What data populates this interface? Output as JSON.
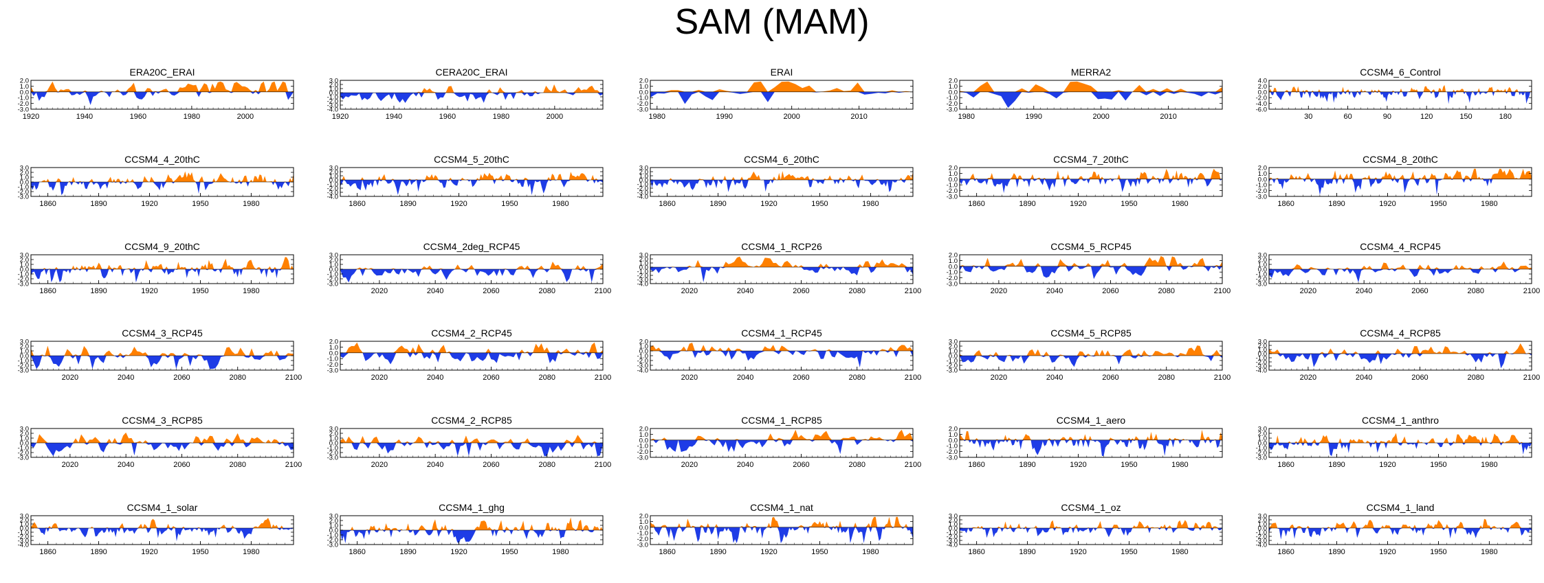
{
  "title": "SAM (MAM)",
  "colors": {
    "positive": "#ff8000",
    "negative": "#1e3ce6",
    "axis": "#000000"
  },
  "chart_data": [
    {
      "type": "area",
      "title": "ERA20C_ERAI",
      "xticks": [
        "1920",
        "1940",
        "1960",
        "1980",
        "2000"
      ],
      "yticks": [
        "2.0",
        "1.0",
        "0.0",
        "-1.0",
        "-2.0",
        "-3.0"
      ],
      "ylim": [
        -3,
        2
      ],
      "xlim": [
        1920,
        2018
      ],
      "n": 98,
      "seed": 11,
      "trend": 0.9,
      "amp": 0.9
    },
    {
      "type": "area",
      "title": "CERA20C_ERAI",
      "xticks": [
        "1920",
        "1940",
        "1960",
        "1980",
        "2000"
      ],
      "yticks": [
        "3.0",
        "2.0",
        "1.0",
        "0.0",
        "-1.0",
        "-2.0",
        "-3.0",
        "-4.0"
      ],
      "ylim": [
        -4,
        3
      ],
      "xlim": [
        1920,
        2018
      ],
      "n": 98,
      "seed": 12,
      "trend": 0.7,
      "amp": 0.9
    },
    {
      "type": "area",
      "title": "ERAI",
      "xticks": [
        "1980",
        "1990",
        "2000",
        "2010"
      ],
      "yticks": [
        "2.0",
        "1.0",
        "0.0",
        "-1.0",
        "-2.0",
        "-3.0"
      ],
      "ylim": [
        -3,
        2
      ],
      "xlim": [
        1979,
        2018
      ],
      "n": 39,
      "seed": 13,
      "trend": 0.3,
      "amp": 1.0
    },
    {
      "type": "area",
      "title": "MERRA2",
      "xticks": [
        "1980",
        "1990",
        "2000",
        "2010"
      ],
      "yticks": [
        "2.0",
        "1.0",
        "0.0",
        "-1.0",
        "-2.0",
        "-3.0"
      ],
      "ylim": [
        -3,
        2
      ],
      "xlim": [
        1979,
        2018
      ],
      "n": 39,
      "seed": 14,
      "trend": 0.3,
      "amp": 1.0
    },
    {
      "type": "area",
      "title": "CCSM4_6_Control",
      "xticks": [
        "30",
        "60",
        "90",
        "120",
        "150",
        "180"
      ],
      "yticks": [
        "4.0",
        "2.0",
        "0.0",
        "-2.0",
        "-4.0",
        "-6.0"
      ],
      "ylim": [
        -6,
        4
      ],
      "xlim": [
        0,
        200
      ],
      "n": 200,
      "seed": 15,
      "trend": 0,
      "amp": 1.2
    },
    {
      "type": "area",
      "title": "CCSM4_4_20thC",
      "xticks": [
        "1860",
        "1890",
        "1920",
        "1950",
        "1980"
      ],
      "yticks": [
        "3.0",
        "2.0",
        "1.0",
        "0.0",
        "-1.0",
        "-2.0",
        "-3.0"
      ],
      "ylim": [
        -3,
        3
      ],
      "xlim": [
        1850,
        2005
      ],
      "n": 156,
      "seed": 21,
      "trend": 0.4,
      "amp": 0.9
    },
    {
      "type": "area",
      "title": "CCSM4_5_20thC",
      "xticks": [
        "1860",
        "1890",
        "1920",
        "1950",
        "1980"
      ],
      "yticks": [
        "3.0",
        "2.0",
        "1.0",
        "0.0",
        "-1.0",
        "-2.0",
        "-3.0",
        "-4.0"
      ],
      "ylim": [
        -4,
        3
      ],
      "xlim": [
        1850,
        2005
      ],
      "n": 156,
      "seed": 22,
      "trend": 0.4,
      "amp": 1.0
    },
    {
      "type": "area",
      "title": "CCSM4_6_20thC",
      "xticks": [
        "1860",
        "1890",
        "1920",
        "1950",
        "1980"
      ],
      "yticks": [
        "3.0",
        "2.0",
        "1.0",
        "0.0",
        "-1.0",
        "-2.0",
        "-3.0",
        "-4.0"
      ],
      "ylim": [
        -4,
        3
      ],
      "xlim": [
        1850,
        2005
      ],
      "n": 156,
      "seed": 23,
      "trend": 0.4,
      "amp": 1.0
    },
    {
      "type": "area",
      "title": "CCSM4_7_20thC",
      "xticks": [
        "1860",
        "1890",
        "1920",
        "1950",
        "1980"
      ],
      "yticks": [
        "2.0",
        "1.0",
        "0.0",
        "-1.0",
        "-2.0",
        "-3.0"
      ],
      "ylim": [
        -3,
        2
      ],
      "xlim": [
        1850,
        2005
      ],
      "n": 156,
      "seed": 24,
      "trend": 0.4,
      "amp": 0.9
    },
    {
      "type": "area",
      "title": "CCSM4_8_20thC",
      "xticks": [
        "1860",
        "1890",
        "1920",
        "1950",
        "1980"
      ],
      "yticks": [
        "2.0",
        "1.0",
        "0.0",
        "-1.0",
        "-2.0",
        "-3.0"
      ],
      "ylim": [
        -3,
        2
      ],
      "xlim": [
        1850,
        2005
      ],
      "n": 156,
      "seed": 25,
      "trend": 0.4,
      "amp": 0.9
    },
    {
      "type": "area",
      "title": "CCSM4_9_20thC",
      "xticks": [
        "1860",
        "1890",
        "1920",
        "1950",
        "1980"
      ],
      "yticks": [
        "3.0",
        "2.0",
        "1.0",
        "0.0",
        "-1.0",
        "-2.0",
        "-3.0"
      ],
      "ylim": [
        -3,
        3
      ],
      "xlim": [
        1850,
        2005
      ],
      "n": 156,
      "seed": 31,
      "trend": 0.4,
      "amp": 0.9
    },
    {
      "type": "area",
      "title": "CCSM4_2deg_RCP45",
      "xticks": [
        "2020",
        "2040",
        "2060",
        "2080",
        "2100"
      ],
      "yticks": [
        "3.0",
        "2.0",
        "1.0",
        "0.0",
        "-1.0",
        "-2.0",
        "-3.0"
      ],
      "ylim": [
        -3,
        3
      ],
      "xlim": [
        2006,
        2100
      ],
      "n": 95,
      "seed": 32,
      "trend": 0.3,
      "amp": 1.0
    },
    {
      "type": "area",
      "title": "CCSM4_1_RCP26",
      "xticks": [
        "2020",
        "2040",
        "2060",
        "2080",
        "2100"
      ],
      "yticks": [
        "3.0",
        "2.0",
        "1.0",
        "0.0",
        "-1.0",
        "-2.0",
        "-3.0",
        "-4.0"
      ],
      "ylim": [
        -4,
        3
      ],
      "xlim": [
        2006,
        2100
      ],
      "n": 95,
      "seed": 33,
      "trend": 0.2,
      "amp": 1.0
    },
    {
      "type": "area",
      "title": "CCSM4_5_RCP45",
      "xticks": [
        "2020",
        "2040",
        "2060",
        "2080",
        "2100"
      ],
      "yticks": [
        "2.0",
        "1.0",
        "0.0",
        "-1.0",
        "-2.0",
        "-3.0"
      ],
      "ylim": [
        -3,
        2
      ],
      "xlim": [
        2006,
        2100
      ],
      "n": 95,
      "seed": 34,
      "trend": 0.3,
      "amp": 0.9
    },
    {
      "type": "area",
      "title": "CCSM4_4_RCP45",
      "xticks": [
        "2020",
        "2040",
        "2060",
        "2080",
        "2100"
      ],
      "yticks": [
        "3.0",
        "2.0",
        "1.0",
        "0.0",
        "-1.0",
        "-2.0",
        "-3.0"
      ],
      "ylim": [
        -3,
        3
      ],
      "xlim": [
        2006,
        2100
      ],
      "n": 95,
      "seed": 35,
      "trend": 0.3,
      "amp": 0.9
    },
    {
      "type": "area",
      "title": "CCSM4_3_RCP45",
      "xticks": [
        "2020",
        "2040",
        "2060",
        "2080",
        "2100"
      ],
      "yticks": [
        "3.0",
        "2.0",
        "1.0",
        "0.0",
        "-1.0",
        "-2.0",
        "-3.0"
      ],
      "ylim": [
        -3,
        3
      ],
      "xlim": [
        2006,
        2100
      ],
      "n": 95,
      "seed": 41,
      "trend": 0.2,
      "amp": 1.0
    },
    {
      "type": "area",
      "title": "CCSM4_2_RCP45",
      "xticks": [
        "2020",
        "2040",
        "2060",
        "2080",
        "2100"
      ],
      "yticks": [
        "2.0",
        "1.0",
        "0.0",
        "-1.0",
        "-2.0",
        "-3.0"
      ],
      "ylim": [
        -3,
        2
      ],
      "xlim": [
        2006,
        2100
      ],
      "n": 95,
      "seed": 42,
      "trend": 0.3,
      "amp": 1.0
    },
    {
      "type": "area",
      "title": "CCSM4_1_RCP45",
      "xticks": [
        "2020",
        "2040",
        "2060",
        "2080",
        "2100"
      ],
      "yticks": [
        "2.0",
        "1.0",
        "0.0",
        "-1.0",
        "-2.0",
        "-3.0",
        "-4.0"
      ],
      "ylim": [
        -4,
        2
      ],
      "xlim": [
        2006,
        2100
      ],
      "n": 95,
      "seed": 43,
      "trend": 0.3,
      "amp": 1.0
    },
    {
      "type": "area",
      "title": "CCSM4_5_RCP85",
      "xticks": [
        "2020",
        "2040",
        "2060",
        "2080",
        "2100"
      ],
      "yticks": [
        "3.0",
        "2.0",
        "1.0",
        "0.0",
        "-1.0",
        "-2.0",
        "-3.0"
      ],
      "ylim": [
        -3,
        3
      ],
      "xlim": [
        2006,
        2100
      ],
      "n": 95,
      "seed": 44,
      "trend": 0.3,
      "amp": 1.0
    },
    {
      "type": "area",
      "title": "CCSM4_4_RCP85",
      "xticks": [
        "2020",
        "2040",
        "2060",
        "2080",
        "2100"
      ],
      "yticks": [
        "3.0",
        "2.0",
        "1.0",
        "0.0",
        "-1.0",
        "-2.0",
        "-3.0",
        "-4.0"
      ],
      "ylim": [
        -4,
        3
      ],
      "xlim": [
        2006,
        2100
      ],
      "n": 95,
      "seed": 45,
      "trend": 0.3,
      "amp": 1.0
    },
    {
      "type": "area",
      "title": "CCSM4_3_RCP85",
      "xticks": [
        "2020",
        "2040",
        "2060",
        "2080",
        "2100"
      ],
      "yticks": [
        "3.0",
        "2.0",
        "1.0",
        "0.0",
        "-1.0",
        "-2.0",
        "-3.0"
      ],
      "ylim": [
        -3,
        3
      ],
      "xlim": [
        2006,
        2100
      ],
      "n": 95,
      "seed": 51,
      "trend": 0.4,
      "amp": 1.0
    },
    {
      "type": "area",
      "title": "CCSM4_2_RCP85",
      "xticks": [
        "2020",
        "2040",
        "2060",
        "2080",
        "2100"
      ],
      "yticks": [
        "3.0",
        "2.0",
        "1.0",
        "0.0",
        "-1.0",
        "-2.0",
        "-3.0"
      ],
      "ylim": [
        -3,
        3
      ],
      "xlim": [
        2006,
        2100
      ],
      "n": 95,
      "seed": 52,
      "trend": 0.4,
      "amp": 1.0
    },
    {
      "type": "area",
      "title": "CCSM4_1_RCP85",
      "xticks": [
        "2020",
        "2040",
        "2060",
        "2080",
        "2100"
      ],
      "yticks": [
        "2.0",
        "1.0",
        "0.0",
        "-1.0",
        "-2.0",
        "-3.0"
      ],
      "ylim": [
        -3,
        2
      ],
      "xlim": [
        2006,
        2100
      ],
      "n": 95,
      "seed": 53,
      "trend": 0.4,
      "amp": 0.9
    },
    {
      "type": "area",
      "title": "CCSM4_1_aero",
      "xticks": [
        "1860",
        "1890",
        "1920",
        "1950",
        "1980"
      ],
      "yticks": [
        "2.0",
        "1.0",
        "0.0",
        "-1.0",
        "-2.0",
        "-3.0"
      ],
      "ylim": [
        -3,
        2
      ],
      "xlim": [
        1850,
        2005
      ],
      "n": 156,
      "seed": 54,
      "trend": 0.3,
      "amp": 1.0
    },
    {
      "type": "area",
      "title": "CCSM4_1_anthro",
      "xticks": [
        "1860",
        "1890",
        "1920",
        "1950",
        "1980"
      ],
      "yticks": [
        "3.0",
        "2.0",
        "1.0",
        "0.0",
        "-1.0",
        "-2.0",
        "-3.0"
      ],
      "ylim": [
        -3,
        3
      ],
      "xlim": [
        1850,
        2005
      ],
      "n": 156,
      "seed": 55,
      "trend": 0.3,
      "amp": 0.9
    },
    {
      "type": "area",
      "title": "CCSM4_1_solar",
      "xticks": [
        "1860",
        "1890",
        "1920",
        "1950",
        "1980"
      ],
      "yticks": [
        "3.0",
        "2.0",
        "1.0",
        "0.0",
        "-1.0",
        "-2.0",
        "-3.0",
        "-4.0"
      ],
      "ylim": [
        -4,
        3
      ],
      "xlim": [
        1850,
        2005
      ],
      "n": 156,
      "seed": 61,
      "trend": 0.3,
      "amp": 1.0
    },
    {
      "type": "area",
      "title": "CCSM4_1_ghg",
      "xticks": [
        "1860",
        "1890",
        "1920",
        "1950",
        "1980"
      ],
      "yticks": [
        "3.0",
        "2.0",
        "1.0",
        "0.0",
        "-1.0",
        "-2.0",
        "-3.0"
      ],
      "ylim": [
        -3,
        3
      ],
      "xlim": [
        1850,
        2005
      ],
      "n": 156,
      "seed": 62,
      "trend": 0.3,
      "amp": 1.0
    },
    {
      "type": "area",
      "title": "CCSM4_1_nat",
      "xticks": [
        "1860",
        "1890",
        "1920",
        "1950",
        "1980"
      ],
      "yticks": [
        "2.0",
        "1.0",
        "0.0",
        "-1.0",
        "-2.0",
        "-3.0"
      ],
      "ylim": [
        -3,
        2
      ],
      "xlim": [
        1850,
        2005
      ],
      "n": 156,
      "seed": 63,
      "trend": 0.2,
      "amp": 1.0
    },
    {
      "type": "area",
      "title": "CCSM4_1_oz",
      "xticks": [
        "1860",
        "1890",
        "1920",
        "1950",
        "1980"
      ],
      "yticks": [
        "3.0",
        "2.0",
        "1.0",
        "0.0",
        "-1.0",
        "-2.0",
        "-3.0",
        "-4.0"
      ],
      "ylim": [
        -4,
        3
      ],
      "xlim": [
        1850,
        2005
      ],
      "n": 156,
      "seed": 64,
      "trend": 0.3,
      "amp": 0.9
    },
    {
      "type": "area",
      "title": "CCSM4_1_land",
      "xticks": [
        "1860",
        "1890",
        "1920",
        "1950",
        "1980"
      ],
      "yticks": [
        "3.0",
        "2.0",
        "1.0",
        "0.0",
        "-1.0",
        "-2.0",
        "-3.0",
        "-4.0"
      ],
      "ylim": [
        -4,
        3
      ],
      "xlim": [
        1850,
        2005
      ],
      "n": 156,
      "seed": 65,
      "trend": 0.3,
      "amp": 1.0
    }
  ]
}
